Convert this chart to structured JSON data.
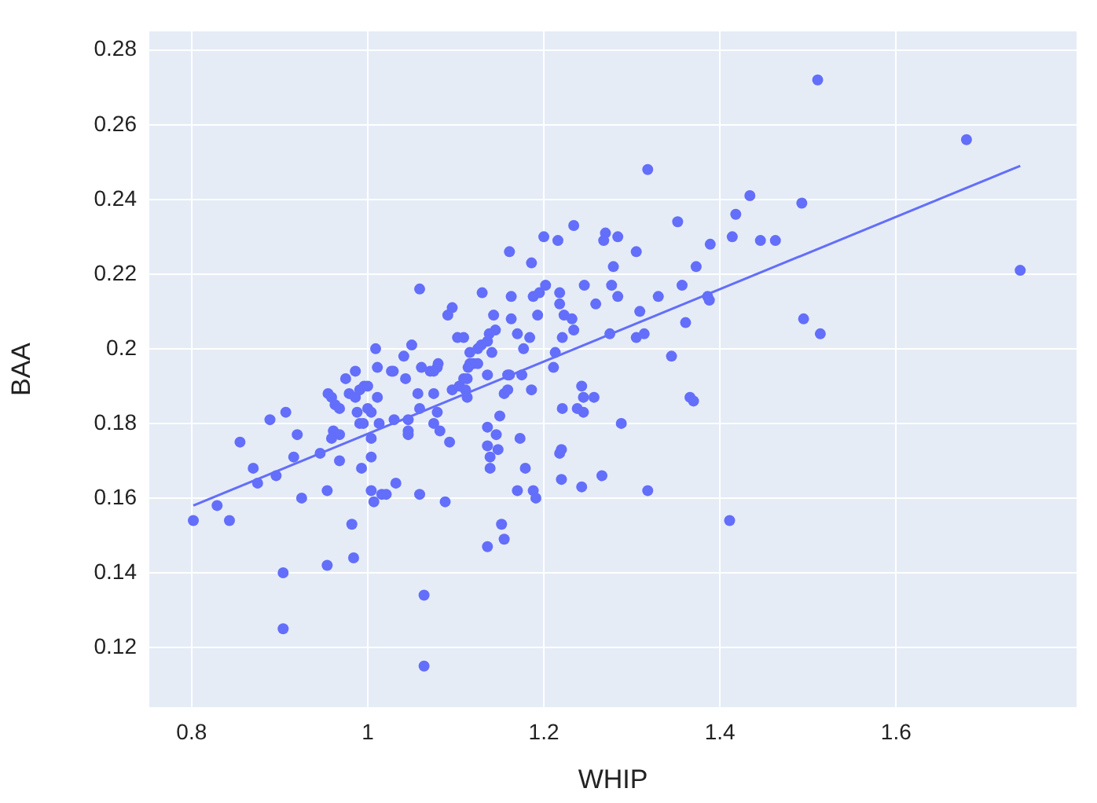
{
  "chart_data": {
    "type": "scatter",
    "xlabel": "WHIP",
    "ylabel": "BAA",
    "xlim": [
      0.752,
      1.805
    ],
    "ylim": [
      0.104,
      0.285
    ],
    "xticks": [
      0.8,
      1,
      1.2,
      1.4,
      1.6
    ],
    "yticks": [
      0.12,
      0.14,
      0.16,
      0.18,
      0.2,
      0.22,
      0.24,
      0.26,
      0.28
    ],
    "grid": true,
    "marker": "circle",
    "series": [
      {
        "color": "#636efa",
        "x": [
          0.802,
          0.829,
          0.843,
          0.855,
          0.87,
          0.875,
          0.889,
          0.896,
          0.904,
          0.904,
          0.907,
          0.916,
          0.92,
          0.925,
          0.946,
          0.954,
          0.954,
          0.955,
          0.959,
          0.961,
          0.959,
          0.963,
          0.968,
          0.968,
          0.968,
          0.975,
          0.979,
          0.982,
          0.984,
          0.986,
          0.988,
          0.986,
          0.991,
          0.993,
          0.991,
          0.995,
          0.996,
          1.0,
          1.0,
          1.004,
          1.004,
          1.004,
          1.004,
          1.007,
          1.011,
          1.011,
          1.013,
          1.016,
          1.021,
          1.029,
          1.03,
          1.032,
          1.043,
          1.046,
          1.046,
          1.046,
          1.057,
          1.059,
          1.059,
          1.061,
          1.064,
          1.064,
          1.071,
          1.075,
          1.075,
          1.075,
          1.079,
          1.079,
          1.082,
          1.088,
          1.093,
          1.096,
          1.104,
          1.109,
          1.111,
          1.113,
          1.113,
          1.114,
          1.12,
          1.125,
          1.136,
          1.136,
          1.136,
          1.136,
          1.139,
          1.139,
          1.146,
          1.148,
          1.15,
          1.152,
          1.155,
          1.155,
          1.159,
          1.159,
          1.161,
          1.17,
          1.173,
          1.175,
          1.179,
          1.186,
          1.188,
          1.191,
          1.211,
          1.218,
          1.22,
          1.22,
          1.221,
          1.238,
          1.243,
          1.245,
          1.243,
          1.245,
          1.257,
          1.266,
          1.288,
          1.161,
          1.186,
          1.2,
          1.216,
          1.234,
          1.27,
          1.268,
          1.284,
          1.279,
          1.059,
          1.13,
          1.163,
          1.188,
          1.195,
          1.202,
          1.218,
          1.246,
          1.277,
          1.284,
          1.096,
          1.091,
          1.143,
          1.163,
          1.193,
          1.218,
          1.223,
          1.232,
          1.259,
          1.234,
          1.275,
          1.17,
          1.184,
          1.221,
          1.145,
          1.138,
          1.102,
          1.109,
          1.136,
          1.129,
          1.125,
          1.116,
          1.141,
          1.177,
          1.213,
          1.009,
          1.05,
          1.041,
          1.027,
          1.08,
          1.116,
          1.318,
          1.511,
          1.68,
          1.741,
          1.352,
          1.434,
          1.418,
          1.493,
          1.305,
          1.414,
          1.389,
          1.446,
          1.463,
          1.373,
          1.357,
          1.33,
          1.386,
          1.388,
          1.309,
          1.361,
          1.305,
          1.314,
          1.495,
          1.514,
          1.345,
          1.366,
          1.37,
          1.318,
          1.411
        ],
        "values": [
          0.154,
          0.158,
          0.154,
          0.175,
          0.168,
          0.164,
          0.181,
          0.166,
          0.14,
          0.125,
          0.183,
          0.171,
          0.177,
          0.16,
          0.172,
          0.162,
          0.142,
          0.188,
          0.187,
          0.178,
          0.176,
          0.185,
          0.184,
          0.177,
          0.17,
          0.192,
          0.188,
          0.153,
          0.144,
          0.194,
          0.183,
          0.187,
          0.189,
          0.168,
          0.18,
          0.18,
          0.19,
          0.19,
          0.184,
          0.183,
          0.176,
          0.171,
          0.162,
          0.159,
          0.195,
          0.187,
          0.18,
          0.161,
          0.161,
          0.194,
          0.181,
          0.164,
          0.192,
          0.181,
          0.178,
          0.177,
          0.188,
          0.184,
          0.161,
          0.195,
          0.134,
          0.115,
          0.194,
          0.194,
          0.188,
          0.18,
          0.183,
          0.195,
          0.178,
          0.159,
          0.175,
          0.189,
          0.19,
          0.192,
          0.189,
          0.187,
          0.192,
          0.195,
          0.196,
          0.196,
          0.179,
          0.174,
          0.147,
          0.193,
          0.171,
          0.168,
          0.177,
          0.173,
          0.182,
          0.153,
          0.149,
          0.188,
          0.189,
          0.193,
          0.193,
          0.162,
          0.176,
          0.193,
          0.168,
          0.189,
          0.162,
          0.16,
          0.195,
          0.172,
          0.173,
          0.165,
          0.184,
          0.184,
          0.19,
          0.187,
          0.163,
          0.183,
          0.187,
          0.166,
          0.18,
          0.226,
          0.223,
          0.23,
          0.229,
          0.233,
          0.231,
          0.229,
          0.23,
          0.222,
          0.216,
          0.215,
          0.214,
          0.214,
          0.215,
          0.217,
          0.215,
          0.217,
          0.217,
          0.214,
          0.211,
          0.209,
          0.209,
          0.208,
          0.209,
          0.212,
          0.209,
          0.208,
          0.212,
          0.205,
          0.204,
          0.204,
          0.203,
          0.203,
          0.205,
          0.204,
          0.203,
          0.203,
          0.202,
          0.201,
          0.2,
          0.199,
          0.199,
          0.2,
          0.199,
          0.2,
          0.201,
          0.198,
          0.194,
          0.196,
          0.196,
          0.248,
          0.272,
          0.256,
          0.221,
          0.234,
          0.241,
          0.236,
          0.239,
          0.226,
          0.23,
          0.228,
          0.229,
          0.229,
          0.222,
          0.217,
          0.214,
          0.214,
          0.213,
          0.21,
          0.207,
          0.203,
          0.204,
          0.208,
          0.204,
          0.198,
          0.187,
          0.186,
          0.162,
          0.154
        ]
      },
      {
        "type": "line",
        "marker": "none",
        "color": "#636efa",
        "x": [
          0.802,
          1.741
        ],
        "values": [
          0.158,
          0.249
        ]
      }
    ]
  }
}
